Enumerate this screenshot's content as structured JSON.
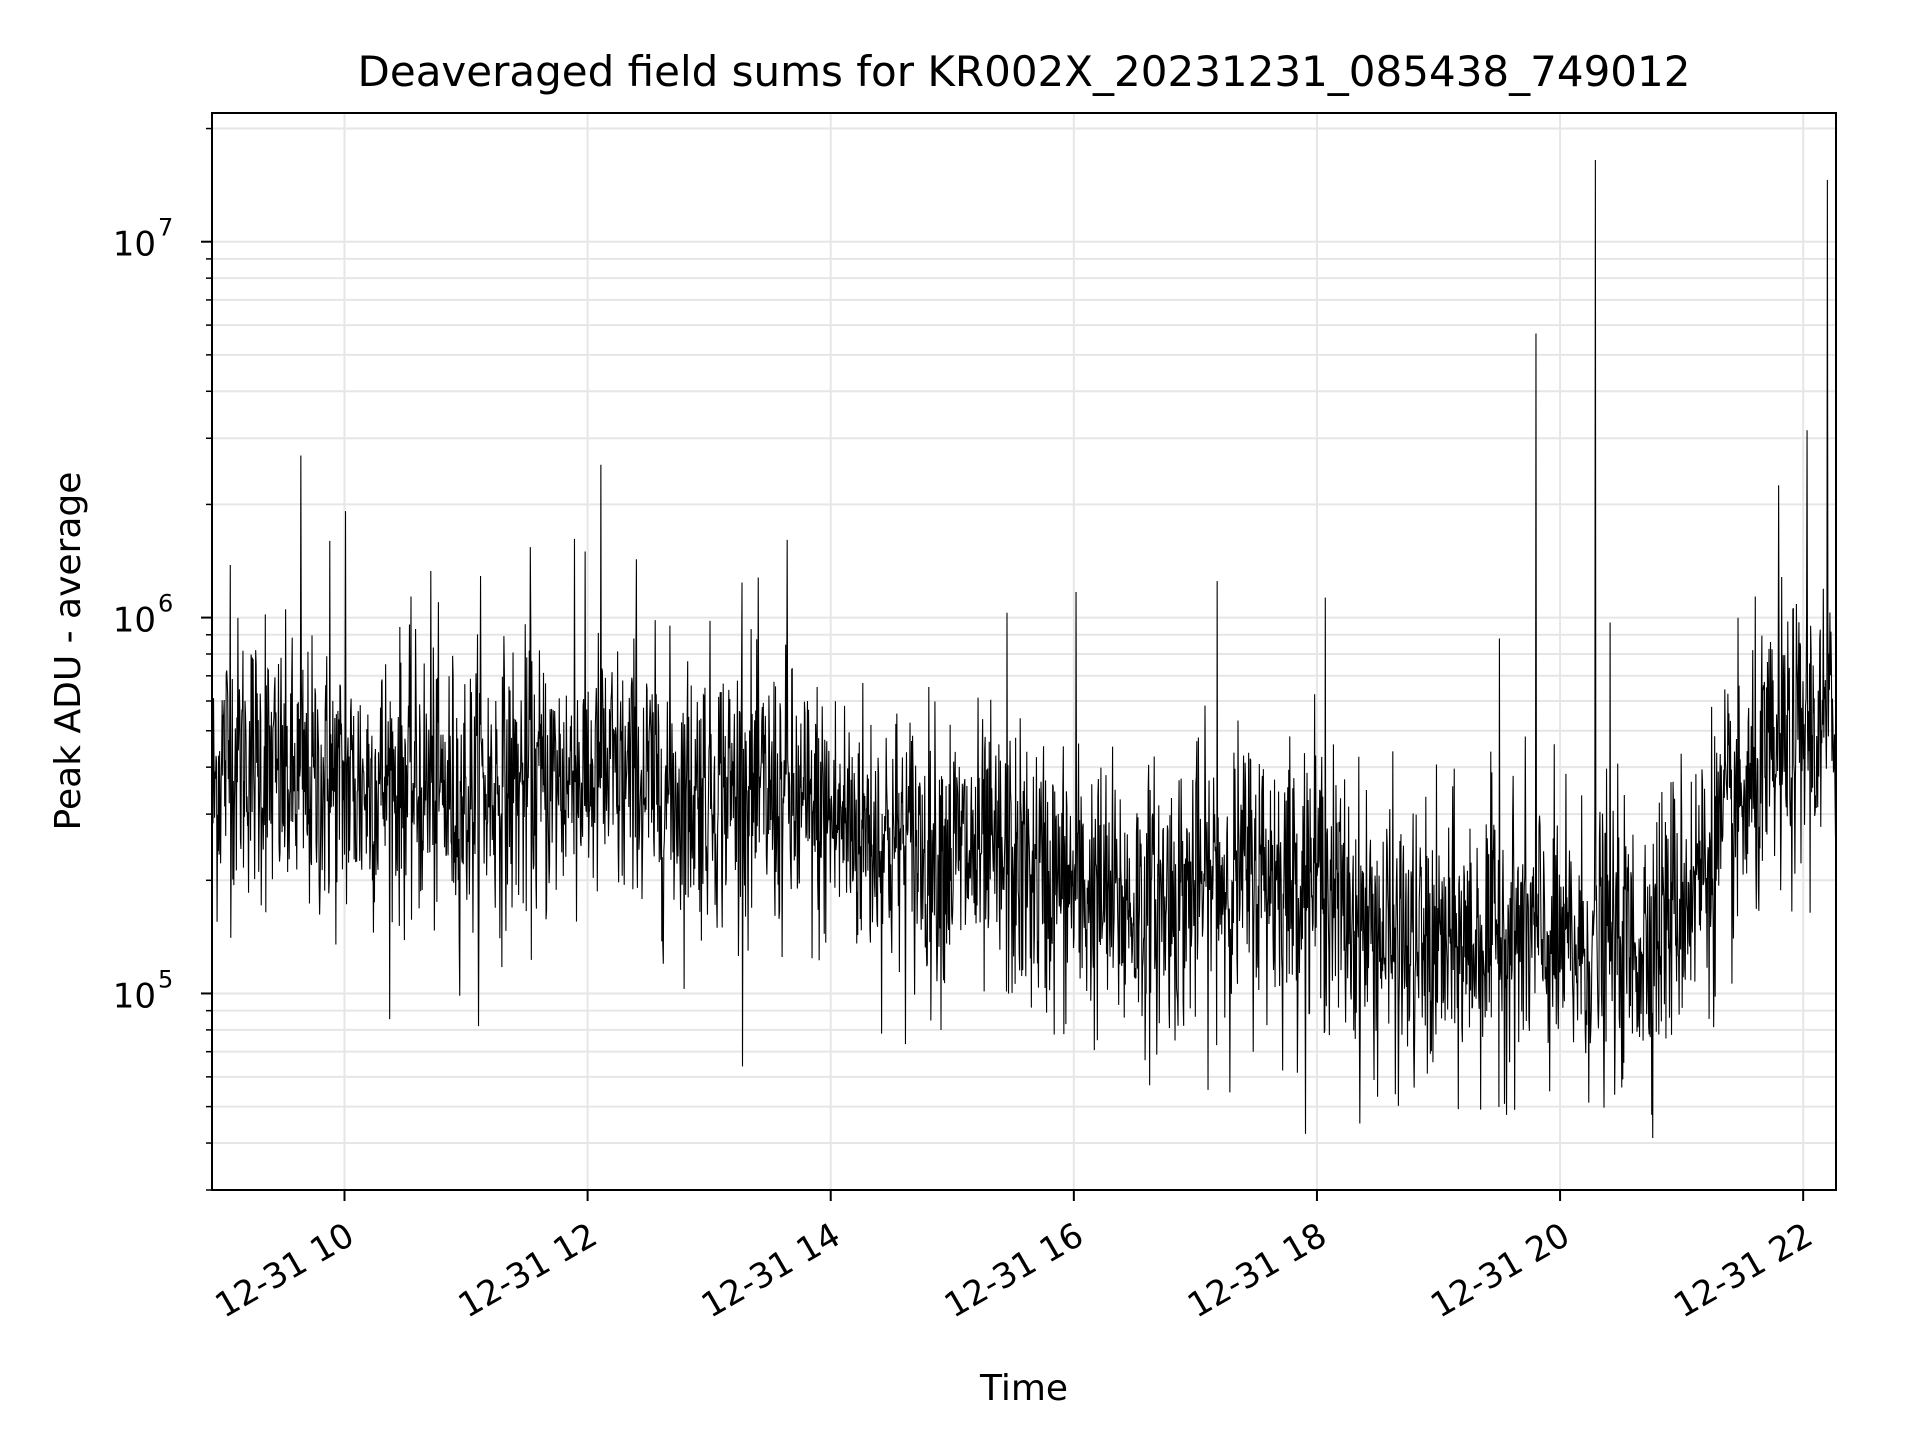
{
  "chart_data": {
    "type": "line",
    "title": "Deaveraged field sums for KR002X_20231231_085438_749012",
    "xlabel": "Time",
    "ylabel": "Peak ADU - average",
    "yscale": "log",
    "grid": true,
    "legend": "none",
    "line_color": "#000000",
    "grid_color": "#e6e6e6",
    "x_range_hours": [
      8.91,
      22.27
    ],
    "ylim": [
      30000,
      22000000
    ],
    "x_ticks": [
      {
        "hour": 10,
        "label": "12-31 10"
      },
      {
        "hour": 12,
        "label": "12-31 12"
      },
      {
        "hour": 14,
        "label": "12-31 14"
      },
      {
        "hour": 16,
        "label": "12-31 16"
      },
      {
        "hour": 18,
        "label": "12-31 18"
      },
      {
        "hour": 20,
        "label": "12-31 20"
      },
      {
        "hour": 22,
        "label": "12-31 22"
      }
    ],
    "y_ticks": [
      {
        "value": 100000,
        "base": "10",
        "exp": "5"
      },
      {
        "value": 1000000,
        "base": "10",
        "exp": "6"
      },
      {
        "value": 10000000,
        "base": "10",
        "exp": "7"
      }
    ],
    "series_x_hours": [
      8.9,
      9.0,
      9.2,
      9.4,
      9.6,
      9.8,
      10.0,
      10.2,
      10.4,
      10.6,
      10.8,
      11.0,
      11.2,
      11.4,
      11.6,
      11.8,
      12.0,
      12.2,
      12.4,
      12.6,
      12.8,
      13.0,
      13.2,
      13.4,
      13.6,
      13.8,
      14.0,
      14.2,
      14.4,
      14.6,
      14.8,
      15.0,
      15.2,
      15.4,
      15.6,
      15.8,
      16.0,
      16.2,
      16.4,
      16.6,
      16.8,
      17.0,
      17.2,
      17.4,
      17.6,
      17.8,
      18.0,
      18.2,
      18.4,
      18.6,
      18.8,
      19.0,
      19.2,
      19.4,
      19.6,
      19.8,
      20.0,
      20.2,
      20.4,
      20.6,
      20.8,
      21.0,
      21.2,
      21.4,
      21.6,
      21.8,
      22.0,
      22.2,
      22.27
    ],
    "series_y_median": [
      320000,
      420000,
      430000,
      380000,
      360000,
      360000,
      350000,
      360000,
      370000,
      360000,
      340000,
      330000,
      350000,
      360000,
      360000,
      370000,
      380000,
      370000,
      360000,
      350000,
      340000,
      360000,
      350000,
      340000,
      320000,
      300000,
      290000,
      280000,
      260000,
      250000,
      240000,
      240000,
      230000,
      220000,
      210000,
      200000,
      190000,
      180000,
      170000,
      170000,
      180000,
      190000,
      200000,
      210000,
      210000,
      200000,
      210000,
      170000,
      150000,
      140000,
      130000,
      130000,
      135000,
      140000,
      145000,
      140000,
      130000,
      130000,
      140000,
      130000,
      150000,
      180000,
      220000,
      280000,
      350000,
      420000,
      480000,
      500000,
      520000
    ],
    "spikes": [
      {
        "hour": 9.64,
        "value": 2700000
      },
      {
        "hour": 9.35,
        "value": 1020000
      },
      {
        "hour": 9.06,
        "value": 1380000
      },
      {
        "hour": 9.88,
        "value": 1600000
      },
      {
        "hour": 10.01,
        "value": 1920000
      },
      {
        "hour": 10.71,
        "value": 1330000
      },
      {
        "hour": 11.12,
        "value": 1290000
      },
      {
        "hour": 11.53,
        "value": 1540000
      },
      {
        "hour": 11.89,
        "value": 1620000
      },
      {
        "hour": 12.11,
        "value": 2550000
      },
      {
        "hour": 12.4,
        "value": 1430000
      },
      {
        "hour": 13.27,
        "value": 1240000
      },
      {
        "hour": 13.64,
        "value": 1610000
      },
      {
        "hour": 15.45,
        "value": 1030000
      },
      {
        "hour": 16.02,
        "value": 1170000
      },
      {
        "hour": 17.18,
        "value": 1250000
      },
      {
        "hour": 18.07,
        "value": 1130000
      },
      {
        "hour": 19.5,
        "value": 880000
      },
      {
        "hour": 19.8,
        "value": 5700000
      },
      {
        "hour": 20.29,
        "value": 16500000
      },
      {
        "hour": 20.41,
        "value": 970000
      },
      {
        "hour": 21.8,
        "value": 2250000
      },
      {
        "hour": 22.03,
        "value": 3150000
      },
      {
        "hour": 22.2,
        "value": 14600000
      }
    ]
  }
}
